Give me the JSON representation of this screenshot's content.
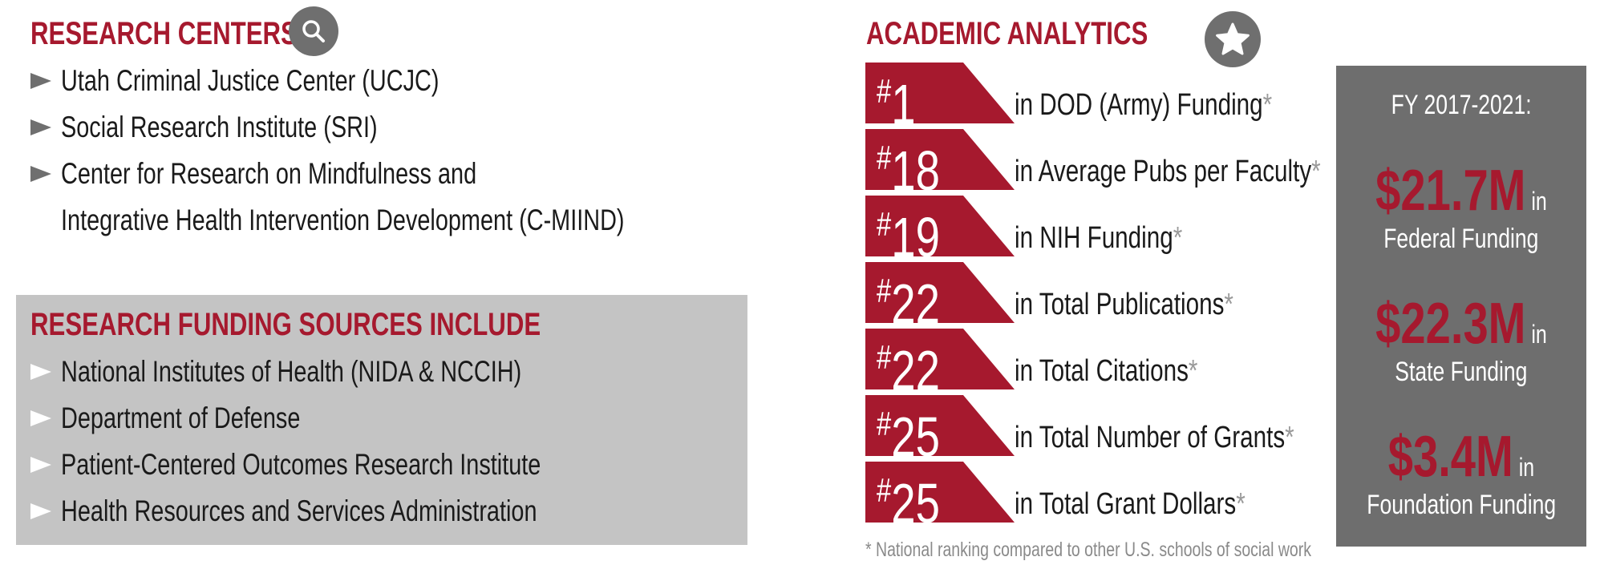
{
  "research_centers": {
    "heading": "RESEARCH CENTERS",
    "icon": "search-icon",
    "items": [
      "Utah Criminal Justice Center (UCJC)",
      "Social Research Institute (SRI)",
      "Center for Research on Mindfulness and",
      "Integrative Health Intervention Development (C-MIIND)"
    ]
  },
  "funding_sources": {
    "heading": "RESEARCH FUNDING SOURCES INCLUDE",
    "items": [
      "National Institutes of Health (NIDA & NCCIH)",
      "Department of Defense",
      "Patient-Centered Outcomes Research Institute",
      "Health Resources and Services Administration"
    ]
  },
  "academic_analytics": {
    "heading": "ACADEMIC ANALYTICS",
    "icon": "star-icon",
    "rankings": [
      {
        "hash": "#",
        "rank": "1",
        "label": "in DOD (Army) Funding",
        "asterisk": "*"
      },
      {
        "hash": "#",
        "rank": "18",
        "label": "in Average Pubs per Faculty",
        "asterisk": "*"
      },
      {
        "hash": "#",
        "rank": "19",
        "label": "in NIH Funding",
        "asterisk": "*"
      },
      {
        "hash": "#",
        "rank": "22",
        "label": "in Total Publications",
        "asterisk": "*"
      },
      {
        "hash": "#",
        "rank": "22",
        "label": "in Total Citations",
        "asterisk": "*"
      },
      {
        "hash": "#",
        "rank": "25",
        "label": "in Total Number of Grants",
        "asterisk": "*"
      },
      {
        "hash": "#",
        "rank": "25",
        "label": "in Total Grant Dollars",
        "asterisk": "*"
      }
    ],
    "footnote": "* National ranking compared to other U.S. schools of social work"
  },
  "funding_totals": {
    "title": "FY 2017-2021:",
    "amounts": [
      {
        "value": "$21.7M",
        "in": "in",
        "caption": "Federal Funding"
      },
      {
        "value": "$22.3M",
        "in": "in",
        "caption": "State Funding"
      },
      {
        "value": "$3.4M",
        "in": "in",
        "caption": "Foundation Funding"
      }
    ]
  },
  "colors": {
    "accent_red": "#a6192e",
    "panel_gray": "#6e6e6e",
    "box_gray": "#c4c4c4",
    "icon_gray": "#6f6f6f"
  }
}
